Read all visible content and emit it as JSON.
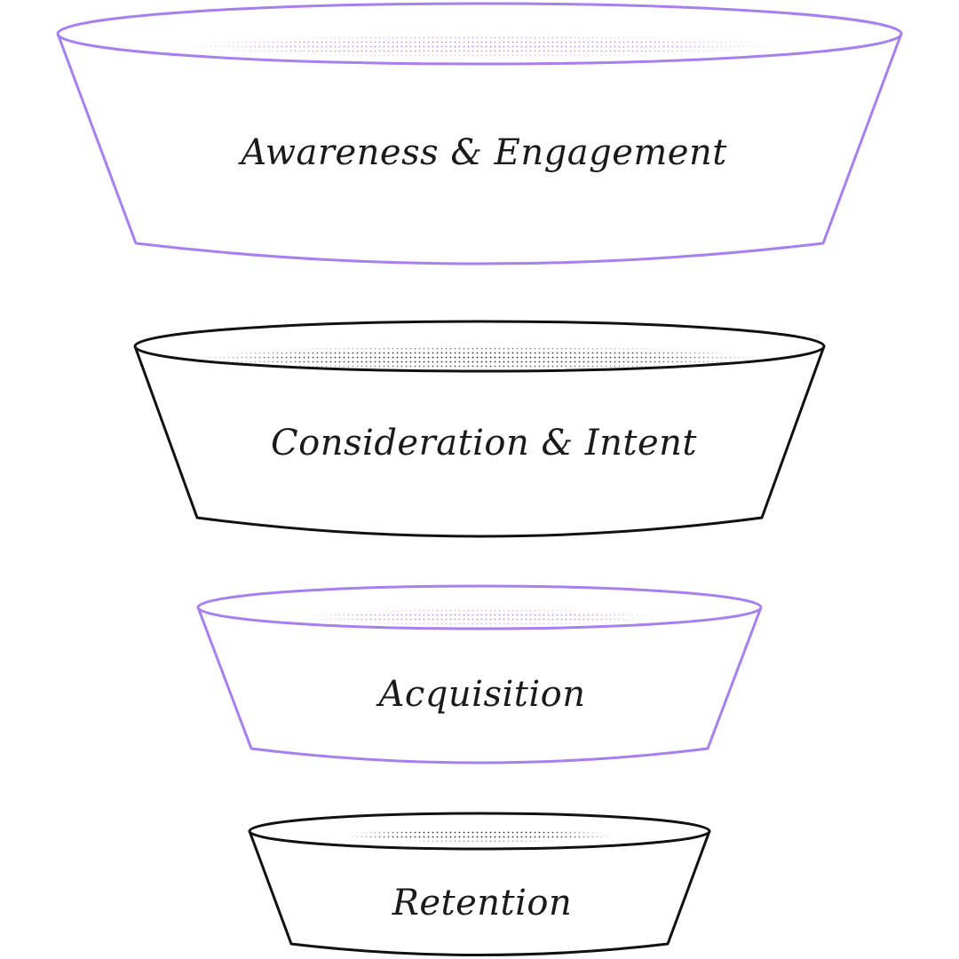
{
  "stages": [
    {
      "label": "Awareness & Engagement",
      "color": "#a77ff0"
    },
    {
      "label": "Consideration & Intent",
      "color": "#111111"
    },
    {
      "label": "Acquisition",
      "color": "#a77ff0"
    },
    {
      "label": "Retention",
      "color": "#111111"
    }
  ]
}
